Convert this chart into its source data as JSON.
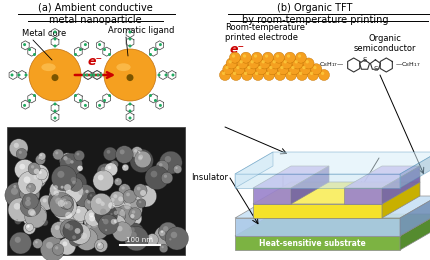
{
  "fig_width": 4.3,
  "fig_height": 2.6,
  "dpi": 100,
  "bg_color": "#ffffff",
  "title_a": "(a) Ambient conductive\nmetal nanoparticle",
  "title_b": "(b) Organic TFT\nby room-temperature printing",
  "label_metal_core": "Metal core",
  "label_aromatic": "Aromatic ligand",
  "label_electron": "e⁻",
  "label_room_temp": "Room-temperature\nprinted electrode",
  "label_organic_semi": "Organic\nsemiconductor",
  "label_insulator": "Insulator",
  "label_substrate": "Heat-sensitive substrate",
  "label_100nm": "100 nm",
  "nanoparticle_orange": "#F5A020",
  "nanoparticle_light": "#FFCC66",
  "electrode_orange": "#F5A020",
  "electrode_light": "#FFD040",
  "yellow_layer_face": "#F5E22A",
  "yellow_layer_top": "#F9EE6A",
  "yellow_layer_side": "#C8B000",
  "purple_layer_face": "#9B84CC",
  "purple_layer_top": "#C0A8E8",
  "purple_layer_side": "#7060A8",
  "blue_layer_face": "#A8C8E8",
  "blue_layer_top": "#C8E0F4",
  "blue_layer_side": "#7090B8",
  "green_layer_face": "#7CB342",
  "green_layer_top": "#9CCC65",
  "green_layer_side": "#558B2F",
  "glass_face": "#C8E4F4",
  "glass_top": "#D8EEF8",
  "glass_side": "#90B8D0",
  "arrow_color": "#CC0000",
  "sem_bg": "#181818",
  "title_fs": 7,
  "label_fs": 6,
  "small_fs": 5
}
